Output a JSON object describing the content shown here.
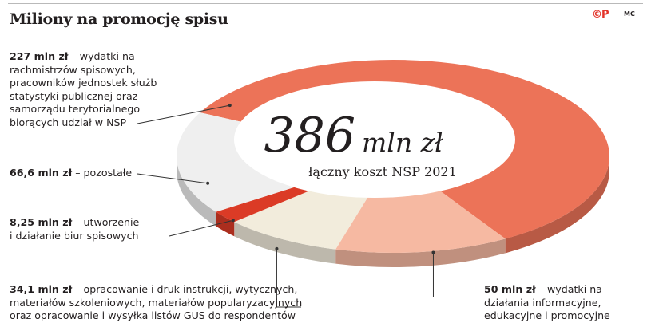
{
  "title": "Miliony na promocję spisu",
  "logo_text": "©P",
  "credit": "MC",
  "center": {
    "total_value": "386",
    "total_unit": "mln zł",
    "total_caption": "łączny koszt NSP 2021"
  },
  "chart_data": {
    "type": "pie",
    "style": "3d-donut",
    "total": 386,
    "unit": "mln zł",
    "slices": [
      {
        "value": 227,
        "value_label": "227 mln zł",
        "desc": [
          "– wydatki na",
          "rachmistrzów spisowych,",
          "pracowników jednostek służb",
          "statystyki publicznej oraz",
          "samorządu terytorialnego",
          "biorących udział w NSP"
        ],
        "color": "#ec7358"
      },
      {
        "value": 50,
        "value_label": "50 mln zł",
        "desc": [
          "– wydatki na",
          "działania informacyjne,",
          "edukacyjne i promocyjne"
        ],
        "color": "#f6b9a2"
      },
      {
        "value": 34.1,
        "value_label": "34,1 mln zł",
        "desc": [
          "– opracowanie i druk instrukcji, wytycznych,",
          "materiałów szkoleniowych, materiałów popularyzacyjnych",
          "oraz opracowanie i wysyłka listów GUS do respondentów"
        ],
        "color": "#f2ecdc"
      },
      {
        "value": 8.25,
        "value_label": "8,25 mln zł",
        "desc": [
          "– utworzenie",
          "i działanie biur spisowych"
        ],
        "color": "#db3b26"
      },
      {
        "value": 66.6,
        "value_label": "66,6 mln zł",
        "desc": [
          "– pozostałe"
        ],
        "color": "#efefef"
      }
    ]
  }
}
